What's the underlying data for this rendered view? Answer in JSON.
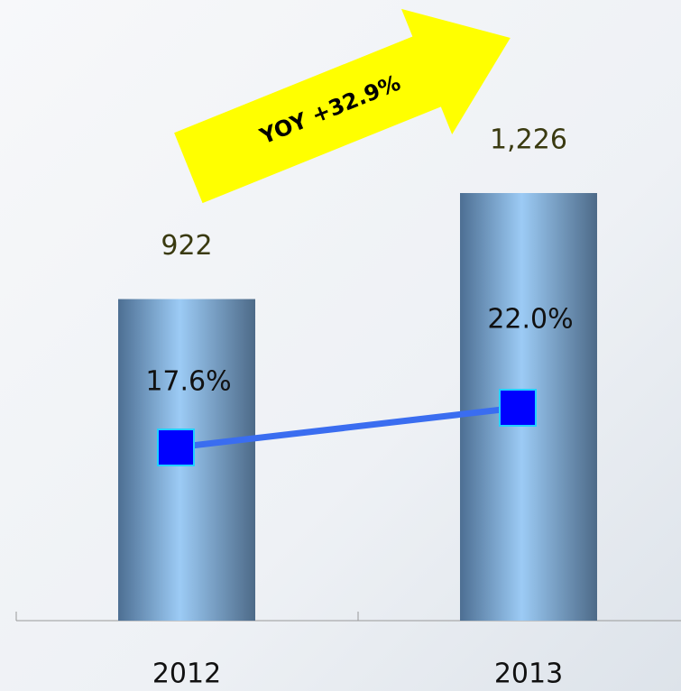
{
  "chart_data": {
    "type": "bar",
    "annotation": "YOY +32.9%",
    "categories": [
      "2012",
      "2013"
    ],
    "series": [
      {
        "type": "bar",
        "color": "#9ccbf5",
        "values": [
          922,
          1226
        ],
        "value_labels": [
          "922",
          "1,226"
        ]
      },
      {
        "type": "line",
        "axis": "y2",
        "color": "#0000ff",
        "values": [
          17.6,
          22.0
        ],
        "value_labels": [
          "17.6%",
          "22.0%"
        ]
      }
    ]
  }
}
